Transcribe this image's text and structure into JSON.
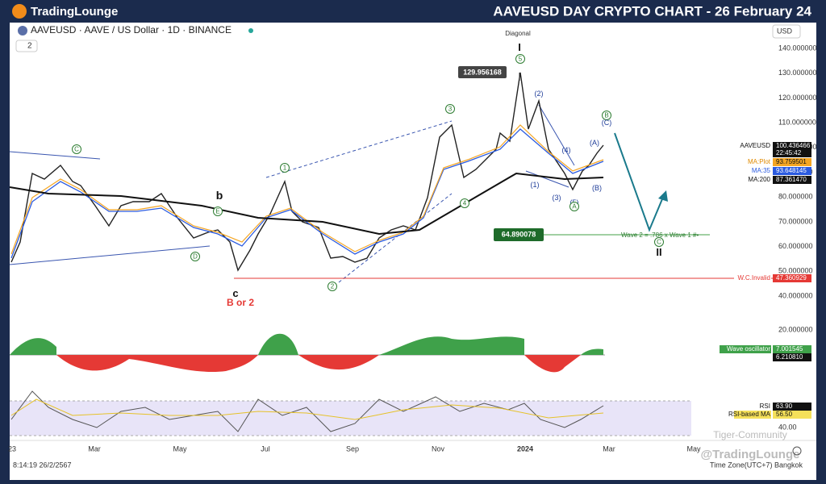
{
  "header": {
    "logo": "TradingLounge",
    "title": "AAVEUSD DAY CRYPTO CHART - 26 February 24"
  },
  "symbol": {
    "name": "AAVEUSD · AAVE / US Dollar · 1D · BINANCE",
    "indicator_count": "2"
  },
  "currency": "USD",
  "price_axis": [
    "140.000000",
    "130.000000",
    "120.000000",
    "110.000000",
    "100.000000",
    "90.000000",
    "80.000000",
    "70.000000",
    "60.000000",
    "50.000000",
    "40.000000"
  ],
  "oscillator_axis": [
    "20.000000"
  ],
  "rsi_axis": [
    "40.00"
  ],
  "time_axis": [
    "23",
    "Mar",
    "May",
    "Jul",
    "Sep",
    "Nov",
    "2024",
    "Mar",
    "May"
  ],
  "badges": [
    {
      "label": "AAVEUSD",
      "value": "100.436466"
    },
    {
      "label": "",
      "value": "22:45:42"
    },
    {
      "label": "MA:Plot",
      "value": "93.759501"
    },
    {
      "label": "MA:35",
      "value": "93.648145"
    },
    {
      "label": "MA:200",
      "value": "87.361470"
    },
    {
      "label": "W.C.Invalid",
      "value": "47.360929"
    },
    {
      "label": "Wave oscillator",
      "value": "7.001545"
    },
    {
      "label": "",
      "value": "6.210810"
    },
    {
      "label": "RSI",
      "value": "63.90"
    },
    {
      "label": "RSI-based MA",
      "value": "56.50"
    }
  ],
  "price_labels": {
    "high": "129.956168",
    "target": "64.890078"
  },
  "annotations": {
    "diagonal": "Diagonal",
    "wave_relation": "Wave 2 = .786 x Wave 1  #•",
    "b_or_2": "B or 2"
  },
  "wave_labels": [
    "C",
    "b",
    "E",
    "D",
    "c",
    "1",
    "2",
    "3",
    "4",
    "5",
    "I",
    "(2)",
    "(4)",
    "(1)",
    "(3)",
    "(5)",
    "A",
    "(A)",
    "(B)",
    "B",
    "(C)",
    "C",
    "II"
  ],
  "footer": {
    "time": "8:14:19 26/2/2567",
    "timezone": "Time Zone(UTC+7) Bangkok",
    "watermark1": "Tiger-Community",
    "watermark2": "@TradingLounge"
  }
}
